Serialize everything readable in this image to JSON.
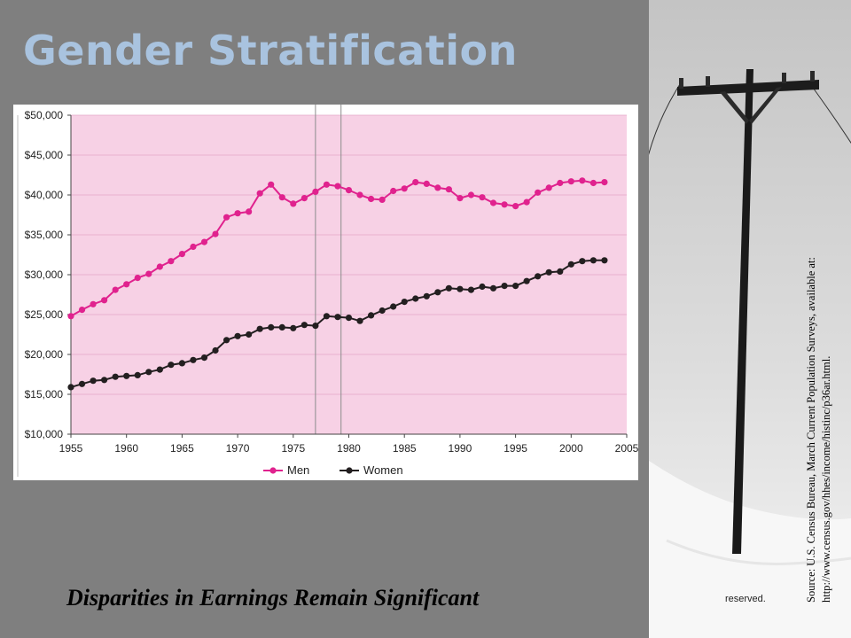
{
  "slide": {
    "title": "Gender Stratification",
    "subtitle": "Disparities in Earnings Remain Significant",
    "photo_caption": "reserved.",
    "source_line1": "Source: U.S. Census Bureau, March Current Population Surveys, available at:",
    "source_line2": "http://www.census.gov/hhes/income/histinc/p36ar.html."
  },
  "colors": {
    "background": "#7f7f7f",
    "title": "#a9c3df",
    "plot_background": "#f7d1e5",
    "men": "#e0228e",
    "women": "#231f20"
  },
  "chart_data": {
    "type": "line",
    "title": "",
    "xlabel": "",
    "ylabel": "",
    "xlim": [
      1955,
      2005
    ],
    "ylim": [
      10000,
      50000
    ],
    "x_ticks": [
      1955,
      1960,
      1965,
      1970,
      1975,
      1980,
      1985,
      1990,
      1995,
      2000,
      2005
    ],
    "y_ticks": [
      "$10,000",
      "$15,000",
      "$20,000",
      "$25,000",
      "$30,000",
      "$35,000",
      "$40,000",
      "$45,000",
      "$50,000"
    ],
    "y_tick_values": [
      10000,
      15000,
      20000,
      25000,
      30000,
      35000,
      40000,
      45000,
      50000
    ],
    "grid": "horizontal",
    "legend_position": "bottom-center",
    "reference_lines_x": [
      1977,
      1979.3
    ],
    "x": [
      1955,
      1956,
      1957,
      1958,
      1959,
      1960,
      1961,
      1962,
      1963,
      1964,
      1965,
      1966,
      1967,
      1968,
      1969,
      1970,
      1971,
      1972,
      1973,
      1974,
      1975,
      1976,
      1977,
      1978,
      1979,
      1980,
      1981,
      1982,
      1983,
      1984,
      1985,
      1986,
      1987,
      1988,
      1989,
      1990,
      1991,
      1992,
      1993,
      1994,
      1995,
      1996,
      1997,
      1998,
      1999,
      2000,
      2001,
      2002,
      2003
    ],
    "series": [
      {
        "name": "Men",
        "color": "#e0228e",
        "values": [
          24800,
          25600,
          26300,
          26800,
          28100,
          28800,
          29600,
          30100,
          31000,
          31700,
          32600,
          33500,
          34100,
          35100,
          37200,
          37700,
          37900,
          40200,
          41300,
          39700,
          38900,
          39600,
          40400,
          41300,
          41100,
          40600,
          40000,
          39500,
          39400,
          40500,
          40800,
          41600,
          41400,
          40900,
          40700,
          39600,
          40000,
          39700,
          39000,
          38800,
          38600,
          39100,
          40300,
          40900,
          41500,
          41700,
          41800,
          41500,
          41600
        ]
      },
      {
        "name": "Women",
        "color": "#231f20",
        "values": [
          15900,
          16300,
          16700,
          16800,
          17200,
          17300,
          17400,
          17800,
          18100,
          18700,
          18900,
          19300,
          19600,
          20500,
          21800,
          22300,
          22500,
          23200,
          23400,
          23400,
          23300,
          23700,
          23600,
          24800,
          24700,
          24600,
          24200,
          24900,
          25500,
          26000,
          26600,
          27000,
          27300,
          27800,
          28300,
          28200,
          28100,
          28500,
          28300,
          28600,
          28600,
          29200,
          29800,
          30300,
          30400,
          31300,
          31700,
          31800,
          31800
        ]
      }
    ]
  }
}
